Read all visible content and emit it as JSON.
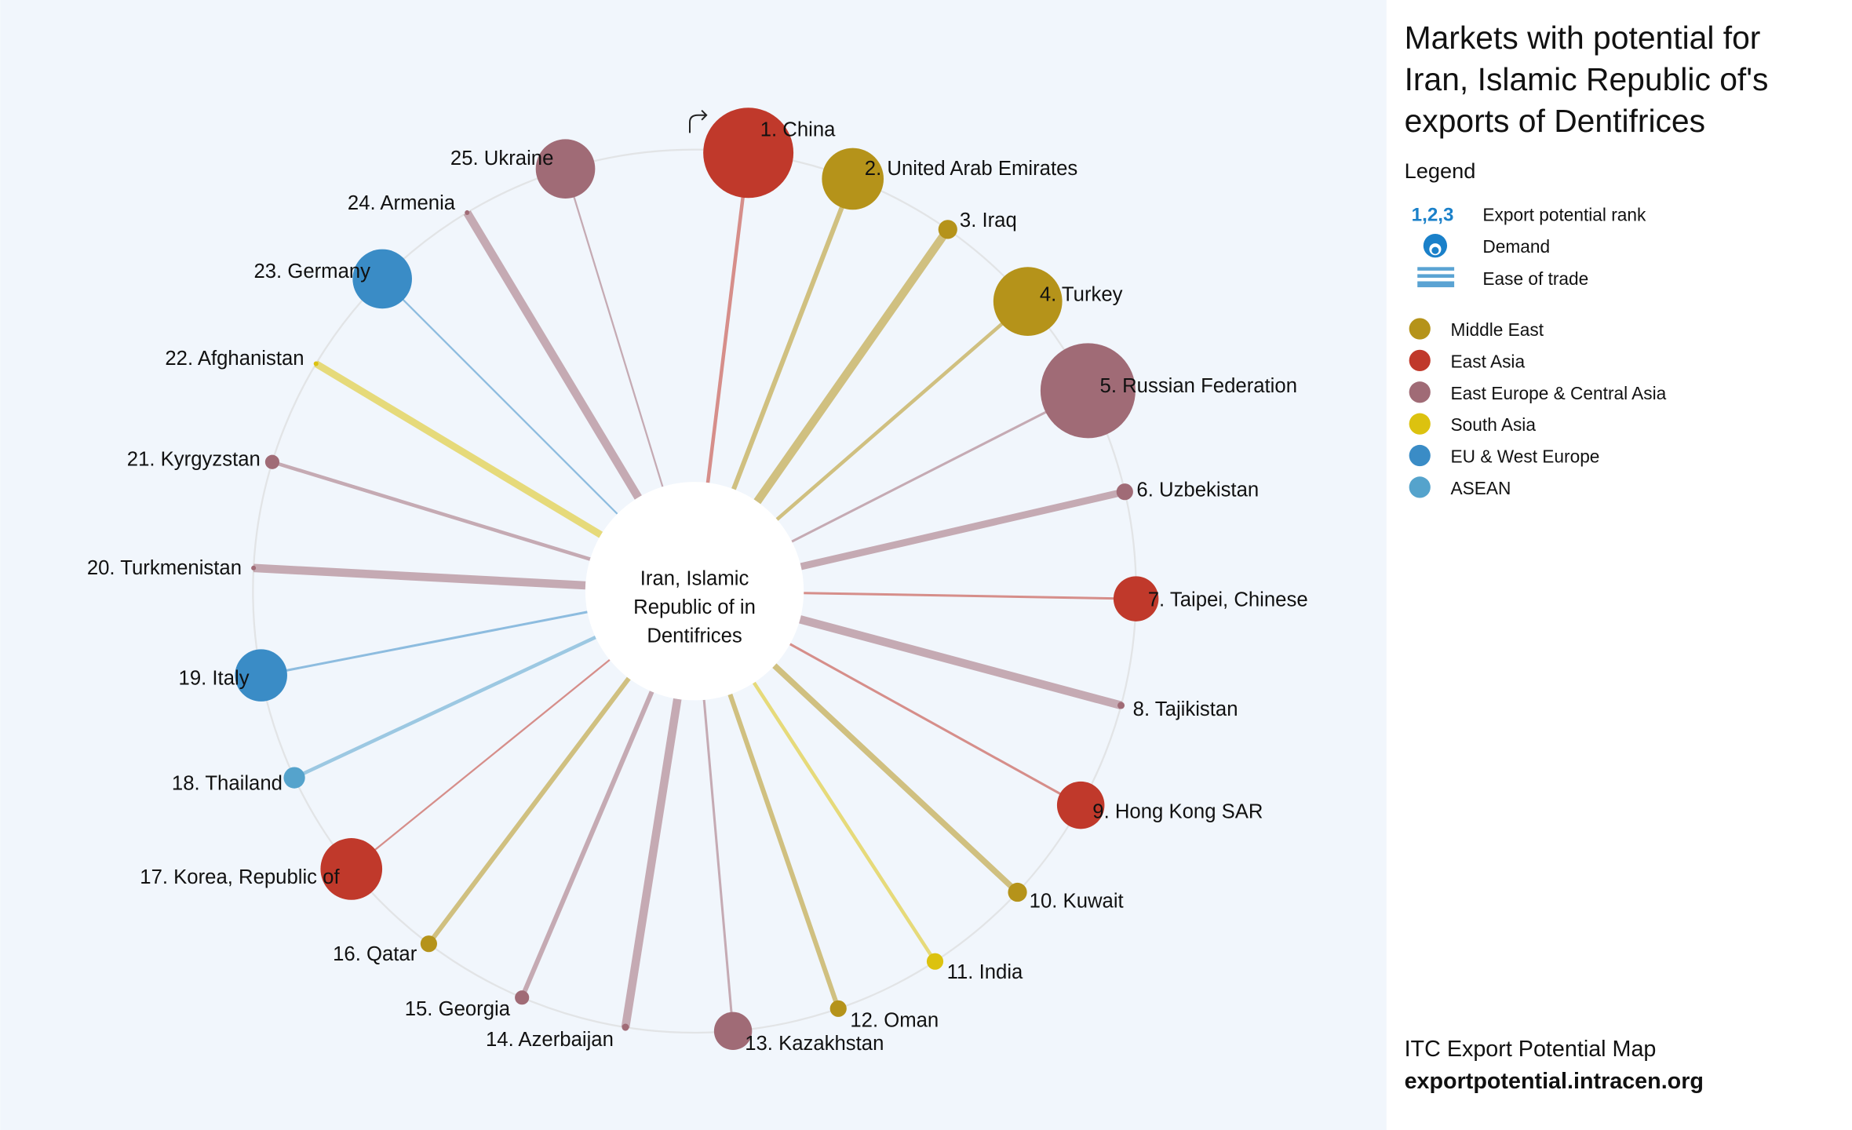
{
  "panel": {
    "title_lines": [
      "Markets with potential for",
      "Iran, Islamic Republic of's",
      "exports of Dentifrices"
    ],
    "legend_heading": "Legend",
    "rank_symbol": "1,2,3",
    "rank_label": "Export potential rank",
    "demand_label": "Demand",
    "ease_label": "Ease of trade",
    "footer_line1": "ITC Export Potential Map",
    "footer_line2": "exportpotential.intracen.org"
  },
  "icons": {
    "reset": "curved-arrow-icon",
    "demand": "bubble-icon",
    "ease": "lines-icon"
  },
  "chart_data": {
    "type": "radial-bubble",
    "title": "Markets with potential for Iran, Islamic Republic of's exports of Dentifrices",
    "center_label": [
      "Iran, Islamic",
      "Republic of in",
      "Dentifrices"
    ],
    "regions": [
      {
        "name": "Middle East",
        "color": "#b5931a"
      },
      {
        "name": "East Asia",
        "color": "#c0392b"
      },
      {
        "name": "East Europe & Central Asia",
        "color": "#a06b76"
      },
      {
        "name": "South Asia",
        "color": "#dcc20f"
      },
      {
        "name": "EU & West Europe",
        "color": "#3a8cc6"
      },
      {
        "name": "ASEAN",
        "color": "#55a3cc"
      }
    ],
    "markets": [
      {
        "rank": 1,
        "name": "China",
        "region": "East Asia",
        "demand_rel": 38,
        "ease_rel": 3
      },
      {
        "rank": 2,
        "name": "United Arab Emirates",
        "region": "Middle East",
        "demand_rel": 26,
        "ease_rel": 4
      },
      {
        "rank": 3,
        "name": "Iraq",
        "region": "Middle East",
        "demand_rel": 8,
        "ease_rel": 7
      },
      {
        "rank": 4,
        "name": "Turkey",
        "region": "Middle East",
        "demand_rel": 29,
        "ease_rel": 3
      },
      {
        "rank": 5,
        "name": "Russian Federation",
        "region": "East Europe & Central Asia",
        "demand_rel": 40,
        "ease_rel": 2
      },
      {
        "rank": 6,
        "name": "Uzbekistan",
        "region": "East Europe & Central Asia",
        "demand_rel": 7,
        "ease_rel": 6
      },
      {
        "rank": 7,
        "name": "Taipei, Chinese",
        "region": "East Asia",
        "demand_rel": 19,
        "ease_rel": 2
      },
      {
        "rank": 8,
        "name": "Tajikistan",
        "region": "East Europe & Central Asia",
        "demand_rel": 3,
        "ease_rel": 7
      },
      {
        "rank": 9,
        "name": "Hong Kong SAR",
        "region": "East Asia",
        "demand_rel": 20,
        "ease_rel": 2
      },
      {
        "rank": 10,
        "name": "Kuwait",
        "region": "Middle East",
        "demand_rel": 8,
        "ease_rel": 5
      },
      {
        "rank": 11,
        "name": "India",
        "region": "South Asia",
        "demand_rel": 7,
        "ease_rel": 3
      },
      {
        "rank": 12,
        "name": "Oman",
        "region": "Middle East",
        "demand_rel": 7,
        "ease_rel": 4
      },
      {
        "rank": 13,
        "name": "Kazakhstan",
        "region": "East Europe & Central Asia",
        "demand_rel": 16,
        "ease_rel": 2
      },
      {
        "rank": 14,
        "name": "Azerbaijan",
        "region": "East Europe & Central Asia",
        "demand_rel": 3,
        "ease_rel": 7
      },
      {
        "rank": 15,
        "name": "Georgia",
        "region": "East Europe & Central Asia",
        "demand_rel": 6,
        "ease_rel": 4
      },
      {
        "rank": 16,
        "name": "Qatar",
        "region": "Middle East",
        "demand_rel": 7,
        "ease_rel": 4
      },
      {
        "rank": 17,
        "name": "Korea, Republic of",
        "region": "East Asia",
        "demand_rel": 26,
        "ease_rel": 1.5
      },
      {
        "rank": 18,
        "name": "Thailand",
        "region": "ASEAN",
        "demand_rel": 9,
        "ease_rel": 3
      },
      {
        "rank": 19,
        "name": "Italy",
        "region": "EU & West Europe",
        "demand_rel": 22,
        "ease_rel": 2
      },
      {
        "rank": 20,
        "name": "Turkmenistan",
        "region": "East Europe & Central Asia",
        "demand_rel": 2,
        "ease_rel": 7
      },
      {
        "rank": 21,
        "name": "Kyrgyzstan",
        "region": "East Europe & Central Asia",
        "demand_rel": 6,
        "ease_rel": 3
      },
      {
        "rank": 22,
        "name": "Afghanistan",
        "region": "South Asia",
        "demand_rel": 2,
        "ease_rel": 6
      },
      {
        "rank": 23,
        "name": "Germany",
        "region": "EU & West Europe",
        "demand_rel": 25,
        "ease_rel": 1.5
      },
      {
        "rank": 24,
        "name": "Armenia",
        "region": "East Europe & Central Asia",
        "demand_rel": 2,
        "ease_rel": 7
      },
      {
        "rank": 25,
        "name": "Ukraine",
        "region": "East Europe & Central Asia",
        "demand_rel": 25,
        "ease_rel": 1.5
      }
    ]
  }
}
